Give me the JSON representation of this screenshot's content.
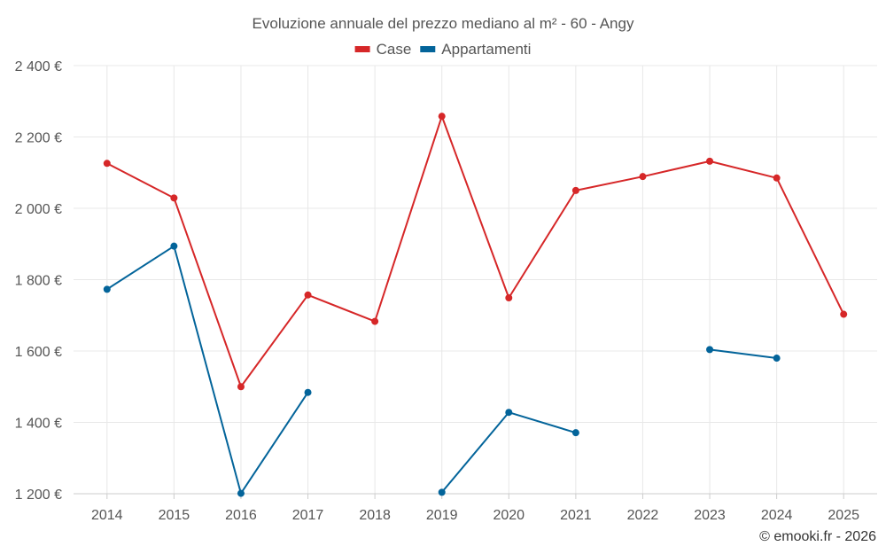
{
  "chart_data": {
    "type": "line",
    "title": "Evoluzione annuale del prezzo mediano al m² - 60 - Angy",
    "categories": [
      "2014",
      "2015",
      "2016",
      "2017",
      "2018",
      "2019",
      "2020",
      "2021",
      "2022",
      "2023",
      "2024",
      "2025"
    ],
    "ylim": [
      1200,
      2400
    ],
    "yticks": [
      1200,
      1400,
      1600,
      1800,
      2000,
      2200,
      2400
    ],
    "ytick_labels": [
      "1 200 €",
      "1 400 €",
      "1 600 €",
      "1 800 €",
      "2 000 €",
      "2 200 €",
      "2 400 €"
    ],
    "grid": true,
    "legend_position": "top-center",
    "series": [
      {
        "name": "Case",
        "color": "#d62728",
        "values": [
          2126,
          2029,
          1500,
          1757,
          1683,
          2258,
          1749,
          2050,
          2089,
          2132,
          2085,
          1703
        ]
      },
      {
        "name": "Appartamenti",
        "color": "#03649a",
        "values": [
          1773,
          1894,
          1201,
          1484,
          null,
          1204,
          1428,
          1371,
          null,
          1604,
          1580,
          null
        ]
      }
    ]
  },
  "credit": "© emooki.fr - 2026"
}
